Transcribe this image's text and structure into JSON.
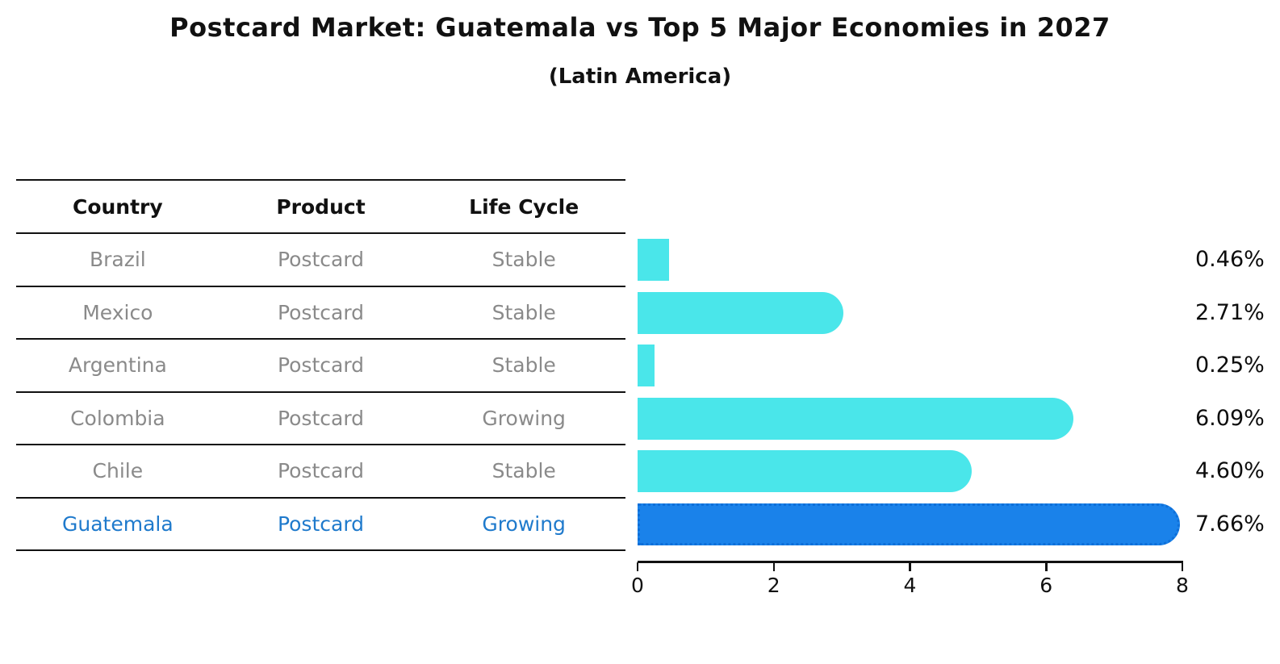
{
  "title": "Postcard Market: Guatemala vs Top 5 Major Economies in 2027",
  "subtitle": "(Latin America)",
  "table": {
    "headers": [
      "Country",
      "Product",
      "Life Cycle"
    ],
    "rows": [
      [
        "Brazil",
        "Postcard",
        "Stable"
      ],
      [
        "Mexico",
        "Postcard",
        "Stable"
      ],
      [
        "Argentina",
        "Postcard",
        "Stable"
      ],
      [
        "Colombia",
        "Postcard",
        "Growing"
      ],
      [
        "Chile",
        "Postcard",
        "Stable"
      ],
      [
        "Guatemala",
        "Postcard",
        "Growing"
      ]
    ],
    "highlight_row": 5
  },
  "chart_data": {
    "type": "bar",
    "orientation": "horizontal",
    "title": "Postcard Market: Guatemala vs Top 5 Major Economies in 2027",
    "subtitle": "(Latin America)",
    "categories": [
      "Brazil",
      "Mexico",
      "Argentina",
      "Colombia",
      "Chile",
      "Guatemala"
    ],
    "values": [
      0.46,
      2.71,
      0.25,
      6.09,
      4.6,
      7.66
    ],
    "value_labels": [
      "0.46%",
      "2.71%",
      "0.25%",
      "6.09%",
      "4.60%",
      "7.66%"
    ],
    "xlim": [
      0,
      8
    ],
    "x_ticks": [
      "0",
      "2",
      "4",
      "6",
      "8"
    ],
    "grid": false,
    "legend": false,
    "highlight_index": 5,
    "bar_color": "#4ae6ea",
    "highlight_color": "#1a82ea",
    "highlight_border_color": "#0e6fd8",
    "highlight_text_color": "#1f7acc"
  }
}
